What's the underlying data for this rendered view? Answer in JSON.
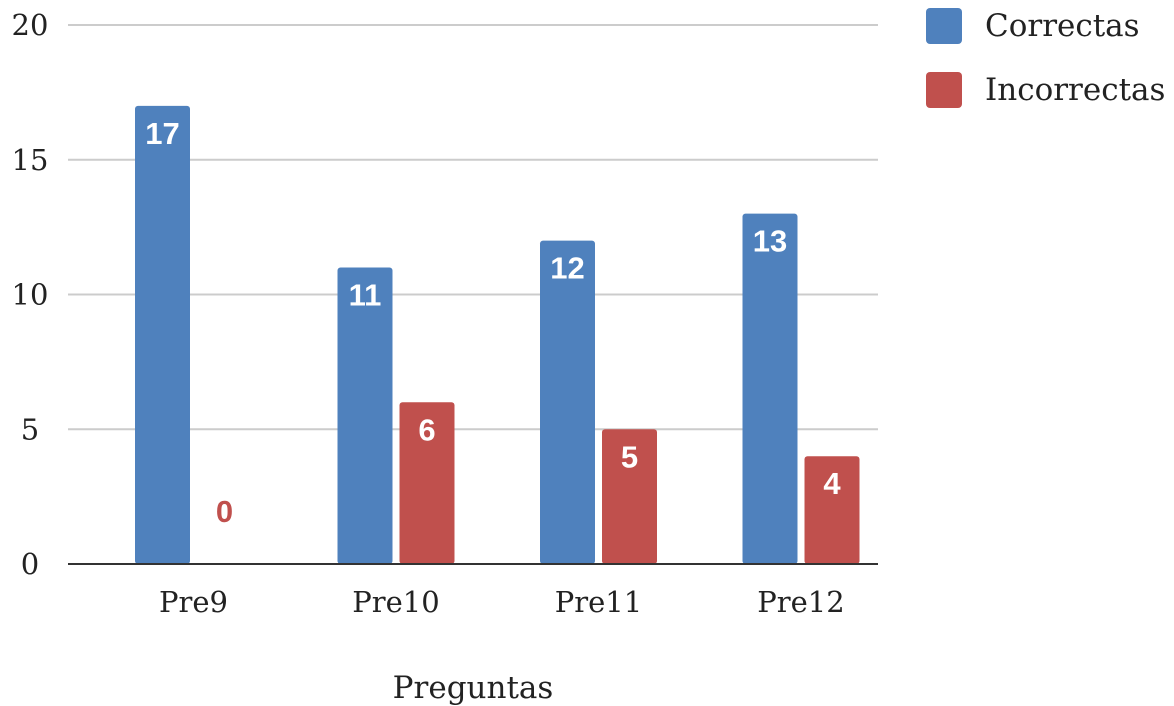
{
  "chart_data": {
    "type": "bar",
    "categories": [
      "Pre9",
      "Pre10",
      "Pre11",
      "Pre12"
    ],
    "series": [
      {
        "name": "Correctas",
        "values": [
          17,
          11,
          12,
          13
        ],
        "color": "#4F81BD"
      },
      {
        "name": "Incorrectas",
        "values": [
          0,
          6,
          5,
          4
        ],
        "color": "#C0504D"
      }
    ],
    "xlabel": "Preguntas",
    "ylabel": "",
    "ylim": [
      0,
      20
    ],
    "yticks": [
      0,
      5,
      10,
      15,
      20
    ],
    "grid": true,
    "legend_position": "top-right",
    "data_labels": true
  }
}
